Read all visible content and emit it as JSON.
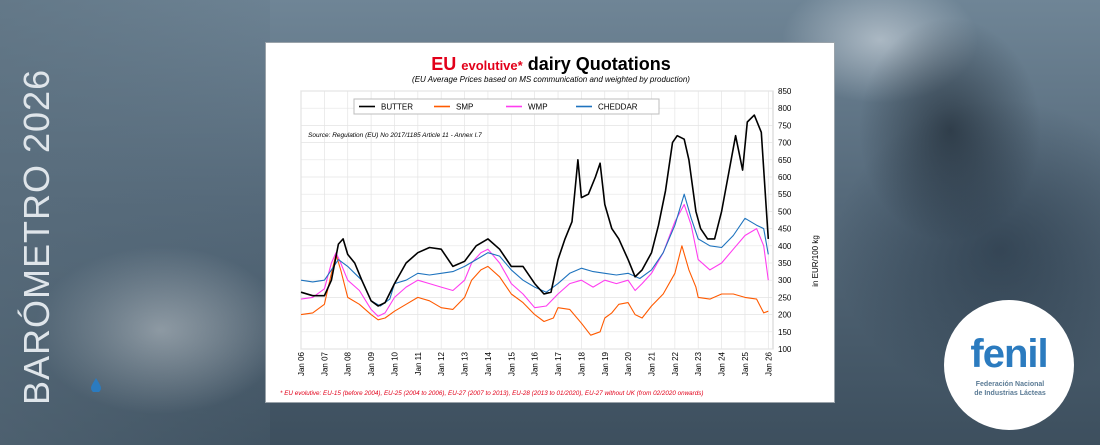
{
  "banner": {
    "vertical_title": "BARÓMETRO 2026"
  },
  "logo": {
    "name": "fenil",
    "subtitle_line1": "Federación Nacional",
    "subtitle_line2": "de Industrias Lácteas"
  },
  "colors": {
    "butter": "#000000",
    "smp": "#ff5a00",
    "wmp": "#ff3df0",
    "cheddar": "#1e73be",
    "title_red": "#e2001a",
    "axis": "#000000"
  },
  "chart_data": {
    "type": "line",
    "title_prefix": "EU",
    "title_emph": "evolutive*",
    "title_suffix": "dairy Quotations",
    "subtitle": "(EU Average Prices based on MS communication and weighted by production)",
    "source": "Source: Regulation (EU) No 2017/1185 Article 11 - Annex I.7",
    "ylabel": "in EUR/100 kg",
    "ylim": [
      100,
      850
    ],
    "yticks": [
      "100",
      "150",
      "200",
      "250",
      "300",
      "350",
      "400",
      "450",
      "500",
      "550",
      "600",
      "650",
      "700",
      "750",
      "800",
      "850"
    ],
    "xlim": [
      2006.0,
      2026.2
    ],
    "xticks": [
      "Jan 06",
      "Jan 07",
      "Jan 08",
      "Jan 09",
      "Jan 10",
      "Jan 11",
      "Jan 12",
      "Jan 13",
      "Jan 14",
      "Jan 15",
      "Jan 16",
      "Jan 17",
      "Jan 18",
      "Jan 19",
      "Jan 20",
      "Jan 21",
      "Jan 22",
      "Jan 23",
      "Jan 24",
      "Jan 25",
      "Jan 26"
    ],
    "footnote": "* EU evolutive: EU-15 (before 2004), EU-25 (2004 to 2006), EU-27 (2007 to 2013), EU-28 (2013 to 01/2020), EU-27 without UK (from 02/2020 onwards)",
    "series": [
      {
        "name": "BUTTER",
        "key": "butter",
        "x": [
          2006.0,
          2006.5,
          2007.0,
          2007.3,
          2007.6,
          2007.8,
          2008.0,
          2008.3,
          2008.6,
          2009.0,
          2009.3,
          2009.6,
          2010.0,
          2010.5,
          2011.0,
          2011.5,
          2012.0,
          2012.5,
          2013.0,
          2013.5,
          2014.0,
          2014.5,
          2015.0,
          2015.5,
          2016.0,
          2016.4,
          2016.7,
          2017.0,
          2017.3,
          2017.6,
          2017.85,
          2018.0,
          2018.3,
          2018.6,
          2018.8,
          2019.0,
          2019.3,
          2019.6,
          2020.0,
          2020.3,
          2020.6,
          2021.0,
          2021.3,
          2021.6,
          2021.9,
          2022.1,
          2022.4,
          2022.6,
          2022.9,
          2023.1,
          2023.4,
          2023.7,
          2024.0,
          2024.3,
          2024.6,
          2024.9,
          2025.1,
          2025.4,
          2025.7,
          2025.9,
          2026.0
        ],
        "y": [
          265,
          255,
          255,
          300,
          405,
          420,
          375,
          350,
          300,
          240,
          225,
          235,
          290,
          350,
          380,
          395,
          390,
          340,
          355,
          400,
          420,
          390,
          340,
          340,
          290,
          260,
          265,
          360,
          420,
          470,
          650,
          540,
          550,
          600,
          640,
          520,
          450,
          420,
          360,
          310,
          330,
          380,
          460,
          560,
          700,
          720,
          710,
          650,
          500,
          450,
          420,
          420,
          500,
          610,
          720,
          620,
          760,
          780,
          730,
          520,
          420
        ]
      },
      {
        "name": "SMP",
        "key": "smp",
        "x": [
          2006.0,
          2006.5,
          2007.0,
          2007.3,
          2007.5,
          2007.7,
          2008.0,
          2008.5,
          2009.0,
          2009.3,
          2009.6,
          2010.0,
          2010.5,
          2011.0,
          2011.5,
          2012.0,
          2012.5,
          2013.0,
          2013.3,
          2013.7,
          2014.0,
          2014.5,
          2015.0,
          2015.5,
          2016.0,
          2016.4,
          2016.8,
          2017.0,
          2017.5,
          2018.0,
          2018.4,
          2018.8,
          2019.0,
          2019.3,
          2019.6,
          2020.0,
          2020.3,
          2020.6,
          2021.0,
          2021.5,
          2022.0,
          2022.3,
          2022.6,
          2022.9,
          2023.0,
          2023.5,
          2024.0,
          2024.5,
          2025.0,
          2025.5,
          2025.8,
          2026.0
        ],
        "y": [
          200,
          205,
          230,
          320,
          375,
          330,
          250,
          230,
          200,
          185,
          190,
          210,
          230,
          250,
          240,
          220,
          215,
          250,
          300,
          330,
          340,
          310,
          260,
          235,
          200,
          180,
          190,
          220,
          215,
          175,
          140,
          150,
          190,
          205,
          230,
          235,
          200,
          190,
          225,
          260,
          320,
          400,
          330,
          280,
          250,
          245,
          260,
          260,
          250,
          245,
          205,
          210
        ]
      },
      {
        "name": "WMP",
        "key": "wmp",
        "x": [
          2006.0,
          2006.5,
          2007.0,
          2007.3,
          2007.5,
          2007.7,
          2008.0,
          2008.5,
          2009.0,
          2009.3,
          2009.6,
          2010.0,
          2010.5,
          2011.0,
          2011.5,
          2012.0,
          2012.5,
          2013.0,
          2013.3,
          2013.7,
          2014.0,
          2014.5,
          2015.0,
          2015.5,
          2016.0,
          2016.5,
          2017.0,
          2017.5,
          2018.0,
          2018.5,
          2019.0,
          2019.5,
          2020.0,
          2020.3,
          2020.6,
          2021.0,
          2021.5,
          2022.0,
          2022.4,
          2022.7,
          2023.0,
          2023.5,
          2024.0,
          2024.5,
          2025.0,
          2025.5,
          2025.8,
          2026.0
        ],
        "y": [
          245,
          250,
          275,
          350,
          380,
          350,
          300,
          270,
          215,
          195,
          205,
          250,
          280,
          300,
          290,
          280,
          270,
          300,
          350,
          380,
          390,
          350,
          290,
          260,
          220,
          225,
          260,
          290,
          300,
          280,
          300,
          290,
          300,
          270,
          290,
          320,
          380,
          470,
          520,
          460,
          360,
          330,
          350,
          390,
          430,
          450,
          400,
          300
        ]
      },
      {
        "name": "CHEDDAR",
        "key": "cheddar",
        "x": [
          2006.0,
          2006.5,
          2007.0,
          2007.3,
          2007.6,
          2008.0,
          2008.3,
          2008.6,
          2009.0,
          2009.4,
          2009.8,
          2010.0,
          2010.5,
          2011.0,
          2011.5,
          2012.0,
          2012.5,
          2013.0,
          2013.5,
          2014.0,
          2014.5,
          2015.0,
          2015.5,
          2016.0,
          2016.5,
          2017.0,
          2017.5,
          2018.0,
          2018.5,
          2019.0,
          2019.5,
          2020.0,
          2020.5,
          2021.0,
          2021.5,
          2022.0,
          2022.4,
          2022.7,
          2023.0,
          2023.5,
          2024.0,
          2024.5,
          2025.0,
          2025.5,
          2025.8,
          2026.0
        ],
        "y": [
          300,
          295,
          300,
          330,
          360,
          340,
          320,
          300,
          240,
          225,
          245,
          290,
          300,
          320,
          315,
          320,
          325,
          340,
          360,
          380,
          370,
          330,
          300,
          280,
          265,
          290,
          320,
          335,
          325,
          320,
          315,
          320,
          305,
          330,
          380,
          460,
          550,
          480,
          420,
          400,
          395,
          430,
          480,
          460,
          450,
          375
        ]
      }
    ],
    "legend": [
      "BUTTER",
      "SMP",
      "WMP",
      "CHEDDAR"
    ]
  }
}
